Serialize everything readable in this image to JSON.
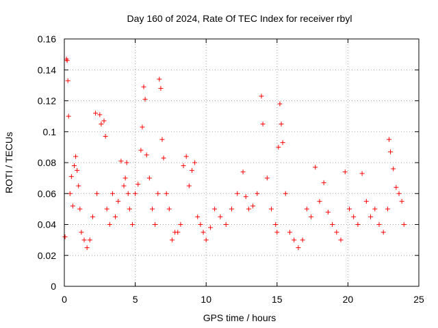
{
  "chart_data": {
    "type": "scatter",
    "title": "Day 160 of 2024, Rate Of TEC Index for receiver rbyl",
    "xlabel": "GPS time / hours",
    "ylabel": "ROTI / TECUs",
    "xlim": [
      0,
      25
    ],
    "ylim": [
      0,
      0.16
    ],
    "xticks": [
      "0",
      "5",
      "10",
      "15",
      "20",
      "25"
    ],
    "yticks": [
      "0",
      "0.02",
      "0.04",
      "0.06",
      "0.08",
      "0.1",
      "0.12",
      "0.14",
      "0.16"
    ],
    "grid": true,
    "marker": "+",
    "color": "#ff0000",
    "series": [
      {
        "name": "ROTI",
        "x": [
          0.05,
          0.15,
          0.2,
          0.25,
          0.3,
          0.4,
          0.5,
          0.6,
          0.7,
          0.8,
          0.9,
          1.0,
          1.1,
          1.2,
          1.4,
          1.6,
          1.8,
          2.0,
          2.2,
          2.3,
          2.5,
          2.6,
          2.8,
          2.9,
          3.0,
          3.2,
          3.4,
          3.6,
          3.8,
          4.0,
          4.2,
          4.3,
          4.4,
          4.5,
          4.6,
          4.8,
          5.0,
          5.2,
          5.4,
          5.5,
          5.6,
          5.7,
          5.8,
          6.0,
          6.2,
          6.4,
          6.6,
          6.7,
          6.8,
          6.9,
          7.0,
          7.2,
          7.4,
          7.6,
          7.8,
          8.0,
          8.2,
          8.4,
          8.6,
          8.8,
          9.0,
          9.2,
          9.4,
          9.6,
          9.8,
          10.0,
          10.3,
          10.6,
          11.0,
          11.4,
          11.8,
          12.2,
          12.6,
          12.8,
          13.0,
          13.3,
          13.6,
          13.9,
          14.0,
          14.3,
          14.6,
          14.9,
          15.0,
          15.1,
          15.2,
          15.3,
          15.4,
          15.6,
          15.9,
          16.2,
          16.5,
          16.8,
          17.1,
          17.4,
          17.7,
          18.0,
          18.3,
          18.6,
          18.9,
          19.2,
          19.5,
          19.8,
          20.1,
          20.4,
          20.7,
          21.0,
          21.3,
          21.6,
          21.9,
          22.2,
          22.5,
          22.8,
          22.9,
          23.0,
          23.2,
          23.4,
          23.6,
          23.8,
          23.95
        ],
        "y": [
          0.032,
          0.147,
          0.146,
          0.133,
          0.11,
          0.06,
          0.071,
          0.052,
          0.078,
          0.084,
          0.075,
          0.065,
          0.05,
          0.035,
          0.03,
          0.025,
          0.03,
          0.045,
          0.112,
          0.06,
          0.111,
          0.105,
          0.107,
          0.097,
          0.05,
          0.04,
          0.06,
          0.045,
          0.055,
          0.081,
          0.065,
          0.07,
          0.08,
          0.06,
          0.05,
          0.04,
          0.06,
          0.066,
          0.088,
          0.103,
          0.129,
          0.121,
          0.085,
          0.07,
          0.05,
          0.04,
          0.06,
          0.134,
          0.128,
          0.095,
          0.083,
          0.06,
          0.05,
          0.03,
          0.035,
          0.035,
          0.04,
          0.078,
          0.084,
          0.065,
          0.075,
          0.08,
          0.045,
          0.04,
          0.035,
          0.03,
          0.038,
          0.05,
          0.045,
          0.04,
          0.05,
          0.06,
          0.074,
          0.058,
          0.05,
          0.052,
          0.06,
          0.123,
          0.105,
          0.07,
          0.05,
          0.04,
          0.035,
          0.09,
          0.118,
          0.105,
          0.093,
          0.06,
          0.035,
          0.03,
          0.025,
          0.03,
          0.05,
          0.045,
          0.077,
          0.055,
          0.067,
          0.048,
          0.04,
          0.035,
          0.03,
          0.074,
          0.05,
          0.045,
          0.04,
          0.073,
          0.055,
          0.045,
          0.05,
          0.04,
          0.035,
          0.05,
          0.095,
          0.087,
          0.076,
          0.064,
          0.06,
          0.055,
          0.04
        ]
      }
    ]
  }
}
